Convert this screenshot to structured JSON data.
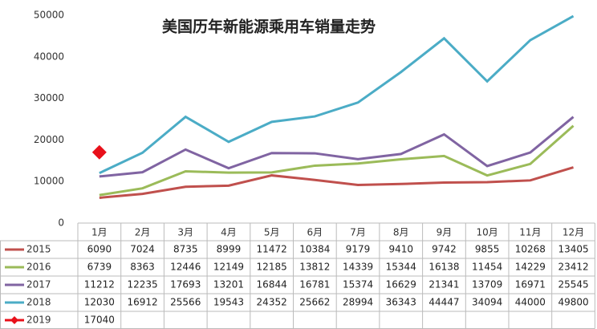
{
  "chart_data": {
    "type": "line",
    "title": "美国历年新能源乘用车销量走势",
    "categories": [
      "1月",
      "2月",
      "3月",
      "4月",
      "5月",
      "6月",
      "7月",
      "8月",
      "9月",
      "10月",
      "11月",
      "12月"
    ],
    "series": [
      {
        "name": "2015",
        "color": "#c0504d",
        "values": [
          6090,
          7024,
          8735,
          8999,
          11472,
          10384,
          9179,
          9410,
          9742,
          9855,
          10268,
          13405
        ]
      },
      {
        "name": "2016",
        "color": "#9bbb59",
        "values": [
          6739,
          8363,
          12446,
          12149,
          12185,
          13812,
          14339,
          15344,
          16138,
          11454,
          14229,
          23412
        ]
      },
      {
        "name": "2017",
        "color": "#8064a2",
        "values": [
          11212,
          12235,
          17693,
          13201,
          16844,
          16781,
          15374,
          16629,
          21341,
          13709,
          16971,
          25545
        ]
      },
      {
        "name": "2018",
        "color": "#4bacc6",
        "values": [
          12030,
          16912,
          25566,
          19543,
          24352,
          25662,
          28994,
          36343,
          44447,
          34094,
          44000,
          49800
        ]
      },
      {
        "name": "2019",
        "color": "#e8101a",
        "marker": "diamond",
        "values": [
          17040,
          null,
          null,
          null,
          null,
          null,
          null,
          null,
          null,
          null,
          null,
          null
        ]
      }
    ],
    "ylim": [
      0,
      50000
    ],
    "yticks": [
      0,
      10000,
      20000,
      30000,
      40000,
      50000
    ],
    "grid": false
  }
}
